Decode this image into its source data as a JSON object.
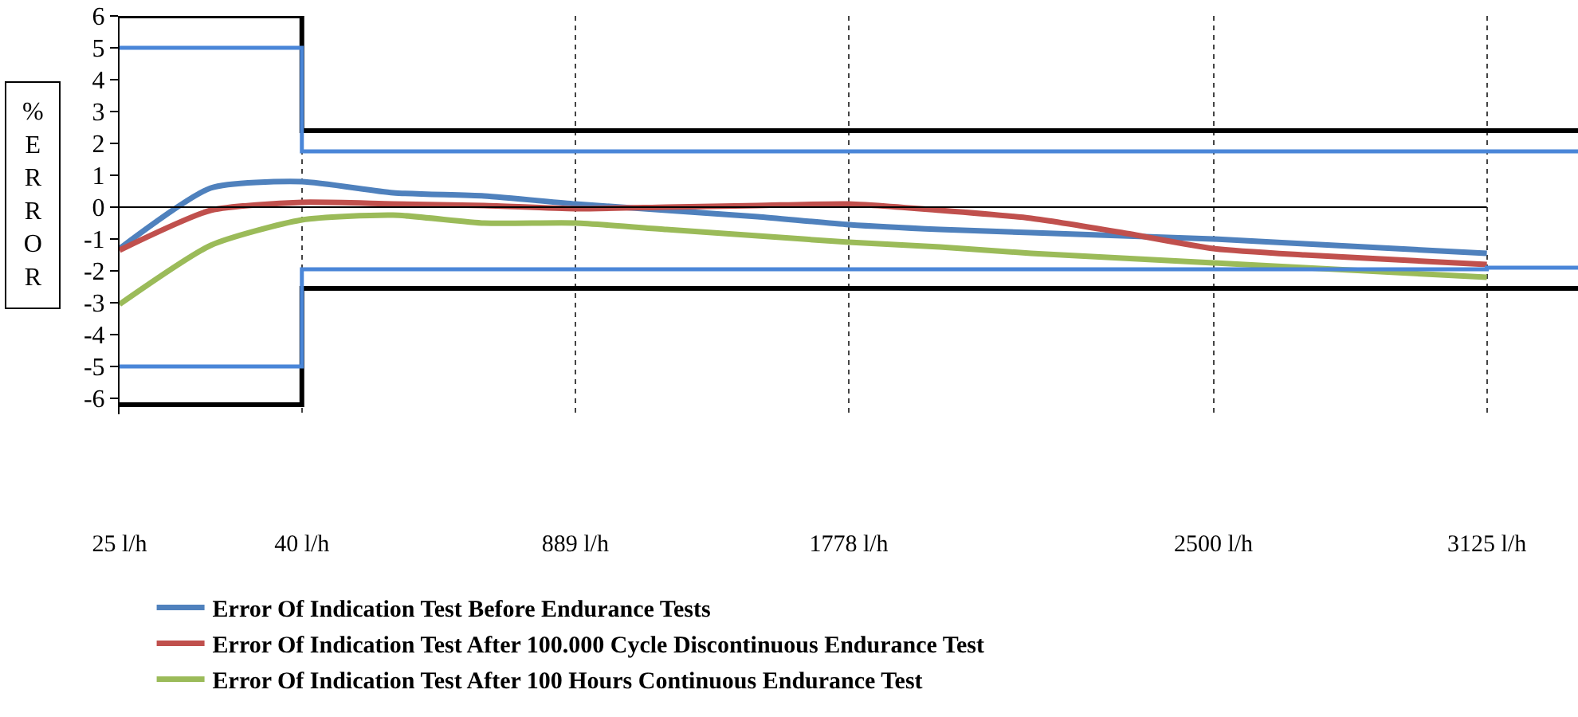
{
  "chart_data": {
    "type": "line",
    "ylabel": "%ERROR",
    "categories": [
      "25 l/h",
      null,
      "40 l/h",
      null,
      null,
      "889 l/h",
      null,
      null,
      "1778 l/h",
      null,
      null,
      null,
      "2500 l/h",
      null,
      null,
      "3125 l/h",
      null
    ],
    "ylim": [
      -6.5,
      6
    ],
    "yticks": [
      -6,
      -5,
      -4,
      -3,
      -2,
      -1,
      0,
      1,
      2,
      3,
      4,
      5,
      6
    ],
    "grid": "x",
    "legend": "bottom",
    "ref_lines": [
      {
        "axis": "y",
        "value": 0,
        "color": "#000000"
      }
    ],
    "series": [
      {
        "name": "Error Of Indication Test Before Endurance Tests",
        "color": "#4f81bd",
        "values": [
          -1.3,
          0.6,
          0.8,
          0.45,
          0.35,
          0.1,
          -0.1,
          -0.3,
          -0.55,
          -0.7,
          -0.8,
          -0.9,
          -1.0,
          -1.15,
          -1.3,
          -1.45,
          null
        ]
      },
      {
        "name": "Error Of Indication Test After 100.000 Cycle Discontinuous Endurance Test",
        "color": "#c0504d",
        "values": [
          -1.35,
          -0.1,
          0.15,
          0.1,
          0.05,
          -0.05,
          0.0,
          0.05,
          0.1,
          -0.1,
          -0.35,
          -0.8,
          -1.3,
          -1.5,
          -1.65,
          -1.8,
          null
        ]
      },
      {
        "name": "Error Of Indication Test After 100 Hours Continuous Endurance Test",
        "color": "#9bbb59",
        "values": [
          -3.05,
          -1.2,
          -0.4,
          -0.25,
          -0.5,
          -0.5,
          -0.7,
          -0.9,
          -1.1,
          -1.25,
          -1.45,
          -1.6,
          -1.75,
          -1.9,
          -2.05,
          -2.2,
          null
        ]
      },
      {
        "type": "step",
        "color": "#000000",
        "values": [
          6,
          6,
          2.4,
          2.4,
          2.4,
          2.4,
          2.4,
          2.4,
          2.4,
          2.4,
          2.4,
          2.4,
          2.4,
          2.4,
          2.4,
          2.4,
          2.4
        ]
      },
      {
        "type": "step",
        "color": "#000000",
        "values": [
          -6.2,
          -6.2,
          -2.55,
          -2.55,
          -2.55,
          -2.55,
          -2.55,
          -2.55,
          -2.55,
          -2.55,
          -2.55,
          -2.55,
          -2.55,
          -2.55,
          -2.55,
          -2.55,
          -2.55
        ]
      },
      {
        "type": "step",
        "color": "#4a86d8",
        "values": [
          5,
          5,
          1.75,
          1.75,
          1.75,
          1.75,
          1.75,
          1.75,
          1.75,
          1.75,
          1.75,
          1.75,
          1.75,
          1.75,
          1.75,
          1.75,
          1.75
        ]
      },
      {
        "type": "step",
        "color": "#4a86d8",
        "values": [
          -5,
          -5,
          -1.95,
          -1.95,
          -1.95,
          -1.95,
          -1.95,
          -1.95,
          -1.95,
          -1.95,
          -1.95,
          -1.95,
          -1.95,
          -1.95,
          -1.95,
          -1.9,
          -1.9
        ]
      }
    ]
  }
}
